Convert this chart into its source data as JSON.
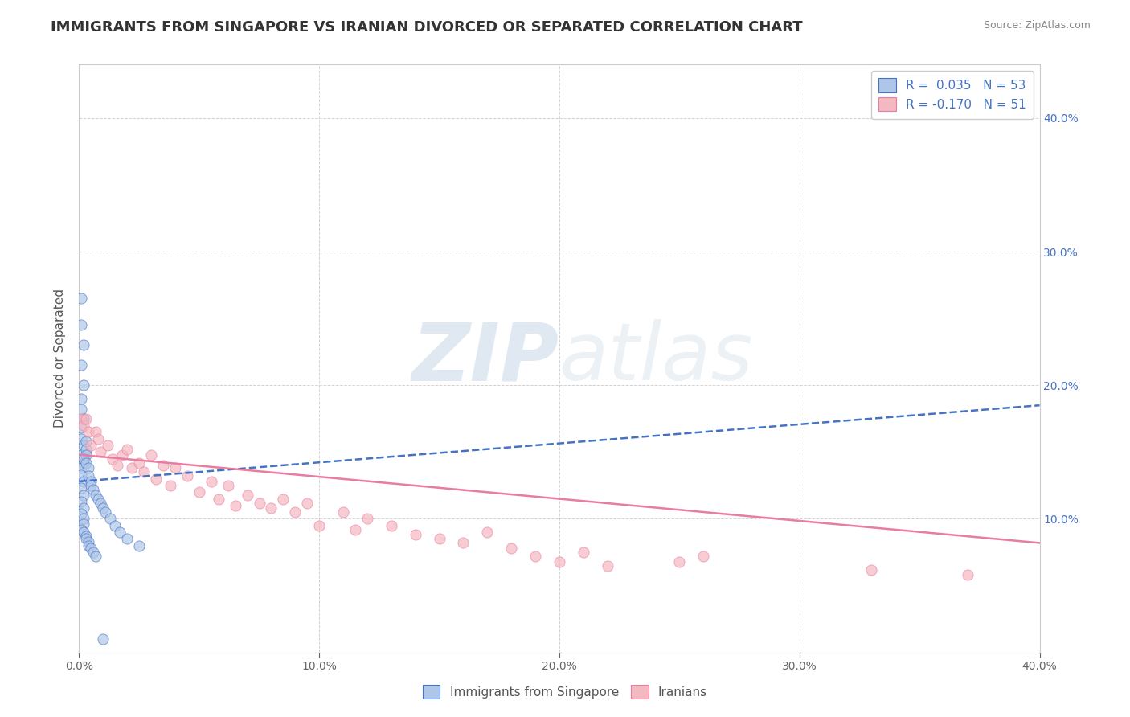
{
  "title": "IMMIGRANTS FROM SINGAPORE VS IRANIAN DIVORCED OR SEPARATED CORRELATION CHART",
  "source_text": "Source: ZipAtlas.com",
  "xlabel": "",
  "ylabel": "Divorced or Separated",
  "xlim": [
    0.0,
    0.4
  ],
  "ylim": [
    0.0,
    0.44
  ],
  "yticks_right": [
    0.1,
    0.2,
    0.3,
    0.4
  ],
  "ytick_right_labels": [
    "10.0%",
    "20.0%",
    "30.0%",
    "40.0%"
  ],
  "xticks": [
    0.0,
    0.1,
    0.2,
    0.3,
    0.4
  ],
  "xtick_labels": [
    "0.0%",
    "10.0%",
    "20.0%",
    "30.0%",
    "40.0%"
  ],
  "legend_entry1": "R =  0.035   N = 53",
  "legend_entry2": "R = -0.170   N = 51",
  "legend_text_color": "#4472c4",
  "blue_scatter_x": [
    0.001,
    0.001,
    0.002,
    0.001,
    0.002,
    0.001,
    0.001,
    0.002,
    0.001,
    0.001,
    0.002,
    0.001,
    0.002,
    0.001,
    0.001,
    0.002,
    0.001,
    0.002,
    0.003,
    0.001,
    0.002,
    0.001,
    0.003,
    0.002,
    0.003,
    0.002,
    0.002,
    0.001,
    0.003,
    0.002,
    0.004,
    0.003,
    0.004,
    0.003,
    0.005,
    0.004,
    0.005,
    0.004,
    0.006,
    0.005,
    0.007,
    0.006,
    0.008,
    0.007,
    0.009,
    0.01,
    0.011,
    0.013,
    0.015,
    0.017,
    0.02,
    0.025,
    0.01
  ],
  "blue_scatter_y": [
    0.265,
    0.245,
    0.23,
    0.215,
    0.2,
    0.19,
    0.182,
    0.175,
    0.168,
    0.16,
    0.155,
    0.148,
    0.142,
    0.138,
    0.133,
    0.128,
    0.123,
    0.118,
    0.158,
    0.113,
    0.108,
    0.104,
    0.152,
    0.1,
    0.148,
    0.096,
    0.145,
    0.092,
    0.142,
    0.09,
    0.138,
    0.087,
    0.132,
    0.085,
    0.128,
    0.083,
    0.125,
    0.08,
    0.122,
    0.078,
    0.118,
    0.075,
    0.115,
    0.072,
    0.112,
    0.108,
    0.105,
    0.1,
    0.095,
    0.09,
    0.085,
    0.08,
    0.01
  ],
  "pink_scatter_x": [
    0.001,
    0.002,
    0.004,
    0.003,
    0.005,
    0.007,
    0.008,
    0.009,
    0.012,
    0.014,
    0.016,
    0.018,
    0.02,
    0.022,
    0.025,
    0.027,
    0.03,
    0.032,
    0.035,
    0.038,
    0.04,
    0.045,
    0.05,
    0.055,
    0.058,
    0.062,
    0.065,
    0.07,
    0.075,
    0.08,
    0.085,
    0.09,
    0.095,
    0.1,
    0.11,
    0.115,
    0.12,
    0.13,
    0.14,
    0.15,
    0.16,
    0.17,
    0.18,
    0.19,
    0.2,
    0.21,
    0.22,
    0.25,
    0.26,
    0.33,
    0.37
  ],
  "pink_scatter_y": [
    0.175,
    0.17,
    0.165,
    0.175,
    0.155,
    0.165,
    0.16,
    0.15,
    0.155,
    0.145,
    0.14,
    0.148,
    0.152,
    0.138,
    0.142,
    0.135,
    0.148,
    0.13,
    0.14,
    0.125,
    0.138,
    0.132,
    0.12,
    0.128,
    0.115,
    0.125,
    0.11,
    0.118,
    0.112,
    0.108,
    0.115,
    0.105,
    0.112,
    0.095,
    0.105,
    0.092,
    0.1,
    0.095,
    0.088,
    0.085,
    0.082,
    0.09,
    0.078,
    0.072,
    0.068,
    0.075,
    0.065,
    0.068,
    0.072,
    0.062,
    0.058
  ],
  "blue_line_x0": 0.0,
  "blue_line_x1": 0.4,
  "blue_line_y0": 0.128,
  "blue_line_y1": 0.185,
  "pink_line_x0": 0.0,
  "pink_line_x1": 0.4,
  "pink_line_y0": 0.148,
  "pink_line_y1": 0.082,
  "blue_fill": "#aec6e8",
  "pink_fill": "#f4b8c1",
  "blue_edge": "#4472c4",
  "pink_edge": "#e97ca0",
  "blue_line_color": "#4472c4",
  "pink_line_color": "#e97ca0",
  "bg_color": "#ffffff",
  "grid_color": "#c8c8c8",
  "title_fontsize": 13,
  "axis_fontsize": 11,
  "watermark_zip": "ZIP",
  "watermark_atlas": "atlas"
}
